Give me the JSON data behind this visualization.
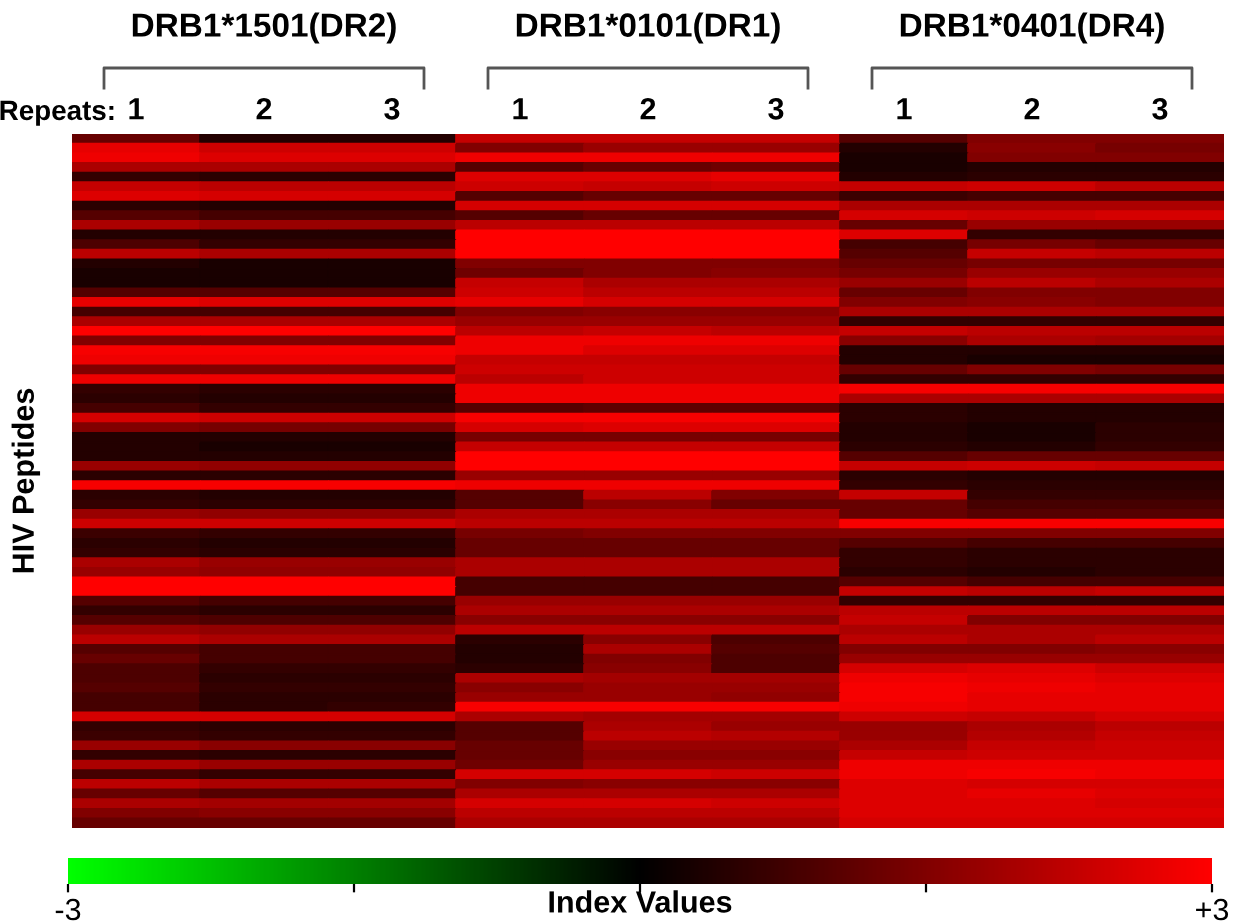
{
  "chart_data": {
    "type": "heatmap",
    "annotations": [
      "DRB1*1501(DR2)",
      "DRB1*0101(DR1)",
      "DRB1*0401(DR4)"
    ],
    "xlabel": "Repeats:",
    "ylabel": "HIV Peptides",
    "clabel": "Index Values",
    "categories": [
      "1",
      "2",
      "3",
      "1",
      "2",
      "3",
      "1",
      "2",
      "3"
    ],
    "y_categories": [
      null,
      null,
      null,
      null,
      null,
      null,
      null,
      null,
      null,
      null,
      null,
      null,
      null,
      null,
      null,
      null,
      null,
      null,
      null,
      null,
      null,
      null,
      null,
      null,
      null,
      null,
      null,
      null,
      null,
      null,
      null,
      null,
      null,
      null,
      null,
      null,
      null,
      null,
      null,
      null,
      null,
      null,
      null,
      null,
      null,
      null,
      null,
      null,
      null,
      null,
      null,
      null,
      null,
      null,
      null,
      null,
      null,
      null,
      null,
      null,
      null,
      null,
      null,
      null,
      null,
      null,
      null,
      null,
      null,
      null,
      null,
      null
    ],
    "clim": [
      -3,
      3
    ],
    "cticks": [
      {
        "value": -3,
        "label": "-3"
      },
      {
        "value": -1.5,
        "label": null
      },
      {
        "value": 0,
        "label": null
      },
      {
        "value": 1.5,
        "label": null
      },
      {
        "value": 3,
        "label": "+3"
      }
    ],
    "cells": [
      [
        1.2,
        0.4,
        0.4,
        2.3,
        2.3,
        2.3,
        1.0,
        1.5,
        1.5
      ],
      [
        2.7,
        2.4,
        2.4,
        1.5,
        1.8,
        1.8,
        0.4,
        1.6,
        1.4
      ],
      [
        2.8,
        2.6,
        2.6,
        2.8,
        2.8,
        2.8,
        0.3,
        1.5,
        1.5
      ],
      [
        2.0,
        2.0,
        2.0,
        1.0,
        1.2,
        1.3,
        0.3,
        0.4,
        0.4
      ],
      [
        0.6,
        0.5,
        0.5,
        2.6,
        2.6,
        2.7,
        0.4,
        0.5,
        0.5
      ],
      [
        2.3,
        2.2,
        2.2,
        2.4,
        2.3,
        2.4,
        2.3,
        2.4,
        2.2
      ],
      [
        2.6,
        2.5,
        2.5,
        1.0,
        1.2,
        1.2,
        0.7,
        0.8,
        0.8
      ],
      [
        0.5,
        0.4,
        0.4,
        2.5,
        2.5,
        2.5,
        2.0,
        2.0,
        2.0
      ],
      [
        1.0,
        0.8,
        0.8,
        1.0,
        1.2,
        1.2,
        2.5,
        2.4,
        2.5
      ],
      [
        2.0,
        1.8,
        1.8,
        2.2,
        2.2,
        2.2,
        1.2,
        1.8,
        1.8
      ],
      [
        0.4,
        0.4,
        0.4,
        3.0,
        3.0,
        3.0,
        2.6,
        0.6,
        0.6
      ],
      [
        0.9,
        0.6,
        0.6,
        3.0,
        3.0,
        3.0,
        0.8,
        1.4,
        1.2
      ],
      [
        2.2,
        2.0,
        2.0,
        3.0,
        3.0,
        3.0,
        1.0,
        2.3,
        2.2
      ],
      [
        0.4,
        0.3,
        0.3,
        1.5,
        1.5,
        1.5,
        1.2,
        1.4,
        1.4
      ],
      [
        0.3,
        0.3,
        0.3,
        1.3,
        1.5,
        1.6,
        1.4,
        1.8,
        1.8
      ],
      [
        0.3,
        0.3,
        0.3,
        2.3,
        2.0,
        2.0,
        1.8,
        2.2,
        2.0
      ],
      [
        1.0,
        1.0,
        1.0,
        2.4,
        2.2,
        2.2,
        1.2,
        1.5,
        1.5
      ],
      [
        2.7,
        2.6,
        2.6,
        2.7,
        2.5,
        2.5,
        1.5,
        1.6,
        1.5
      ],
      [
        0.8,
        0.8,
        0.8,
        1.5,
        1.6,
        1.6,
        2.0,
        2.0,
        2.0
      ],
      [
        2.0,
        2.0,
        2.0,
        1.8,
        1.8,
        1.8,
        0.6,
        0.6,
        0.6
      ],
      [
        3.0,
        3.0,
        3.0,
        2.2,
        2.3,
        2.2,
        2.3,
        2.2,
        2.2
      ],
      [
        1.5,
        1.5,
        1.5,
        2.8,
        2.8,
        2.8,
        1.6,
        2.0,
        1.9
      ],
      [
        2.9,
        2.9,
        2.9,
        2.8,
        2.6,
        2.6,
        0.4,
        0.4,
        0.4
      ],
      [
        2.8,
        2.8,
        2.8,
        2.3,
        2.3,
        2.3,
        0.4,
        0.3,
        0.3
      ],
      [
        1.5,
        1.5,
        1.5,
        2.4,
        2.4,
        2.4,
        1.2,
        1.5,
        1.4
      ],
      [
        2.8,
        2.8,
        2.8,
        2.2,
        2.4,
        2.4,
        0.6,
        0.6,
        0.6
      ],
      [
        0.6,
        0.5,
        0.5,
        2.8,
        2.8,
        2.8,
        2.9,
        2.9,
        2.9
      ],
      [
        0.5,
        0.4,
        0.4,
        2.8,
        2.8,
        2.8,
        2.0,
        2.0,
        2.0
      ],
      [
        0.8,
        0.6,
        0.6,
        1.0,
        1.1,
        1.1,
        0.5,
        0.4,
        0.4
      ],
      [
        2.5,
        2.4,
        2.4,
        2.9,
        2.9,
        2.9,
        0.5,
        0.4,
        0.4
      ],
      [
        1.5,
        1.4,
        1.4,
        2.5,
        2.6,
        2.6,
        0.4,
        0.3,
        0.5
      ],
      [
        0.4,
        0.4,
        0.4,
        1.4,
        1.4,
        1.4,
        0.4,
        0.3,
        0.5
      ],
      [
        0.4,
        0.3,
        0.3,
        2.3,
        2.3,
        2.3,
        0.5,
        0.4,
        0.6
      ],
      [
        0.4,
        0.4,
        0.4,
        3.0,
        3.0,
        3.0,
        1.0,
        1.2,
        1.2
      ],
      [
        1.8,
        1.7,
        1.7,
        3.0,
        3.0,
        3.0,
        2.3,
        2.4,
        2.3
      ],
      [
        0.5,
        0.5,
        0.5,
        1.8,
        1.8,
        1.8,
        0.5,
        0.4,
        0.4
      ],
      [
        2.9,
        2.9,
        2.9,
        2.8,
        2.8,
        2.8,
        0.6,
        0.5,
        0.5
      ],
      [
        0.5,
        0.4,
        0.4,
        1.0,
        2.2,
        1.5,
        2.3,
        0.6,
        0.6
      ],
      [
        0.6,
        0.5,
        0.5,
        1.0,
        1.6,
        1.2,
        1.2,
        0.8,
        0.8
      ],
      [
        1.8,
        1.7,
        1.7,
        2.0,
        2.0,
        2.0,
        1.2,
        1.0,
        1.0
      ],
      [
        2.4,
        2.4,
        2.4,
        2.2,
        2.2,
        2.2,
        2.9,
        2.9,
        2.9
      ],
      [
        0.7,
        0.6,
        0.6,
        1.4,
        1.5,
        1.5,
        1.5,
        1.5,
        1.5
      ],
      [
        0.5,
        0.4,
        0.4,
        1.2,
        1.2,
        1.2,
        1.0,
        0.8,
        0.8
      ],
      [
        0.6,
        0.5,
        0.5,
        1.2,
        1.2,
        1.2,
        0.6,
        0.5,
        0.5
      ],
      [
        2.0,
        1.8,
        1.8,
        2.0,
        2.0,
        2.0,
        0.6,
        0.5,
        0.5
      ],
      [
        1.8,
        1.7,
        1.7,
        2.0,
        2.0,
        2.0,
        0.5,
        0.4,
        0.5
      ],
      [
        3.0,
        3.0,
        3.0,
        0.8,
        0.8,
        0.8,
        1.0,
        0.8,
        0.8
      ],
      [
        3.0,
        3.0,
        3.0,
        0.8,
        0.8,
        0.8,
        2.3,
        2.2,
        2.3
      ],
      [
        1.0,
        0.8,
        0.8,
        1.8,
        1.8,
        1.8,
        0.6,
        0.6,
        0.6
      ],
      [
        0.6,
        0.5,
        0.5,
        2.0,
        2.0,
        2.0,
        2.2,
        2.2,
        2.2
      ],
      [
        1.0,
        0.9,
        0.9,
        1.6,
        1.6,
        1.6,
        2.3,
        1.5,
        1.5
      ],
      [
        1.8,
        1.7,
        1.7,
        2.2,
        2.2,
        2.2,
        2.0,
        2.0,
        2.0
      ],
      [
        2.2,
        2.0,
        2.0,
        0.5,
        1.6,
        0.9,
        2.2,
        2.0,
        2.2
      ],
      [
        1.0,
        0.8,
        0.8,
        0.4,
        2.0,
        1.0,
        1.5,
        1.5,
        1.6
      ],
      [
        1.2,
        0.8,
        0.8,
        0.4,
        1.5,
        0.9,
        1.8,
        1.8,
        1.8
      ],
      [
        0.9,
        0.6,
        0.6,
        0.5,
        1.6,
        0.9,
        2.5,
        2.6,
        2.4
      ],
      [
        0.9,
        0.5,
        0.5,
        2.0,
        1.9,
        1.9,
        2.8,
        2.7,
        2.6
      ],
      [
        1.0,
        0.6,
        0.6,
        1.6,
        1.8,
        1.8,
        2.9,
        2.8,
        2.7
      ],
      [
        0.8,
        0.5,
        0.5,
        1.8,
        1.8,
        1.7,
        2.9,
        2.7,
        2.7
      ],
      [
        0.8,
        0.5,
        0.6,
        2.9,
        2.9,
        2.9,
        2.8,
        2.7,
        2.7
      ],
      [
        2.5,
        2.5,
        2.5,
        2.0,
        1.9,
        1.9,
        2.4,
        2.3,
        2.5
      ],
      [
        0.6,
        0.5,
        0.5,
        1.0,
        2.0,
        1.8,
        1.8,
        2.0,
        2.2
      ],
      [
        0.7,
        0.6,
        0.6,
        1.0,
        2.2,
        2.1,
        1.8,
        2.1,
        2.3
      ],
      [
        1.8,
        1.6,
        1.6,
        1.2,
        1.8,
        1.8,
        2.0,
        2.3,
        2.4
      ],
      [
        0.6,
        0.5,
        0.5,
        1.2,
        1.6,
        1.6,
        2.3,
        2.4,
        2.4
      ],
      [
        2.0,
        1.8,
        1.8,
        1.3,
        1.8,
        1.8,
        2.8,
        2.8,
        2.8
      ],
      [
        0.8,
        0.6,
        0.6,
        2.5,
        2.5,
        2.4,
        2.8,
        2.9,
        2.8
      ],
      [
        2.2,
        2.0,
        2.0,
        1.5,
        1.6,
        1.6,
        2.6,
        2.5,
        2.5
      ],
      [
        1.2,
        1.0,
        1.0,
        2.0,
        2.0,
        2.0,
        2.6,
        2.7,
        2.6
      ],
      [
        2.0,
        1.9,
        1.9,
        2.5,
        2.5,
        2.4,
        2.6,
        2.6,
        2.5
      ],
      [
        1.5,
        1.6,
        1.6,
        2.2,
        2.2,
        2.2,
        2.6,
        2.6,
        2.6
      ],
      [
        1.2,
        1.2,
        1.2,
        2.0,
        2.0,
        2.0,
        2.5,
        2.5,
        2.5
      ]
    ]
  }
}
